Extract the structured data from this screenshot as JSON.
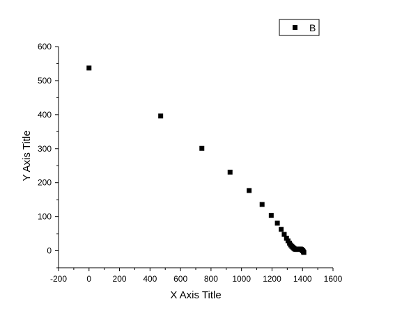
{
  "chart_data": {
    "type": "scatter",
    "title": "",
    "xlabel": "X Axis Title",
    "ylabel": "Y Axis Title",
    "xlim": [
      -200,
      1600
    ],
    "ylim": [
      -50,
      600
    ],
    "xticks": [
      -200,
      0,
      200,
      400,
      600,
      800,
      1000,
      1200,
      1400,
      1600
    ],
    "yticks": [
      0,
      100,
      200,
      300,
      400,
      500,
      600
    ],
    "grid": false,
    "legend_position": "top-right",
    "marker": "square",
    "color": "#000000",
    "series": [
      {
        "name": "B",
        "x": [
          0,
          470,
          740,
          925,
          1050,
          1135,
          1195,
          1235,
          1260,
          1280,
          1295,
          1305,
          1315,
          1322,
          1330,
          1337,
          1344,
          1350,
          1357,
          1363,
          1370,
          1376,
          1382,
          1387,
          1392,
          1397,
          1402,
          1406,
          1409
        ],
        "y": [
          537,
          396,
          301,
          231,
          177,
          136,
          104,
          81,
          63,
          48,
          37,
          29,
          22,
          17,
          13,
          10,
          7,
          5,
          4,
          4,
          4,
          5,
          5,
          5,
          4,
          2,
          0,
          -3,
          -5
        ]
      }
    ]
  }
}
